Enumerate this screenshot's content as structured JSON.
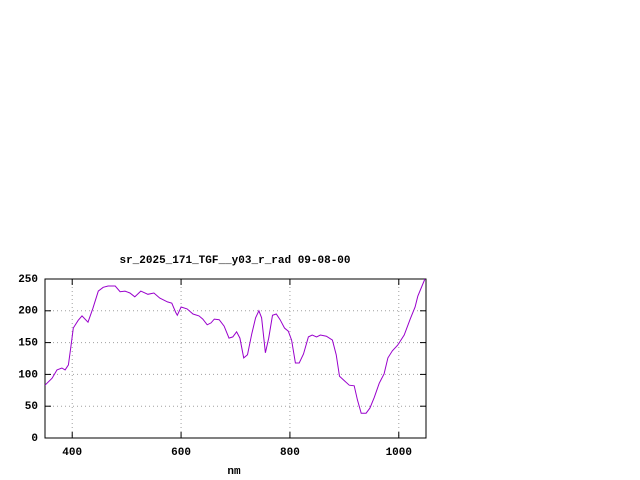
{
  "chart_data": {
    "type": "line",
    "title": "sr_2025_171_TGF__y03_r_rad 09-08-00",
    "x_label": "nm",
    "x": [
      350,
      363,
      372,
      381,
      387,
      393,
      398,
      402,
      411,
      418,
      429,
      438,
      448,
      457,
      466,
      479,
      488,
      497,
      506,
      515,
      526,
      539,
      550,
      561,
      575,
      583,
      590,
      593,
      600,
      611,
      622,
      633,
      640,
      648,
      655,
      661,
      670,
      679,
      688,
      695,
      702,
      708,
      715,
      722,
      730,
      737,
      743,
      748,
      755,
      761,
      768,
      775,
      782,
      790,
      797,
      803,
      810,
      817,
      825,
      834,
      841,
      849,
      856,
      867,
      878,
      885,
      891,
      900,
      909,
      918,
      924,
      931,
      940,
      947,
      955,
      964,
      973,
      980,
      988,
      998,
      1010,
      1021,
      1030,
      1035,
      1048
    ],
    "series": [
      {
        "name": "sr_2025_171_TGF__y03_r_rad",
        "color": "#9900cc",
        "values": [
          83,
          94,
          107,
          110,
          107,
          115,
          146,
          173,
          185,
          192,
          182,
          204,
          231,
          237,
          239,
          239,
          230,
          231,
          228,
          222,
          231,
          226,
          228,
          220,
          214,
          212,
          198,
          193,
          206,
          203,
          195,
          192,
          187,
          178,
          181,
          187,
          186,
          176,
          157,
          159,
          167,
          157,
          126,
          131,
          164,
          189,
          200,
          189,
          134,
          157,
          193,
          195,
          186,
          173,
          168,
          154,
          118,
          118,
          132,
          159,
          162,
          159,
          162,
          160,
          154,
          131,
          97,
          90,
          83,
          82,
          60,
          39,
          39,
          47,
          64,
          86,
          101,
          126,
          137,
          146,
          162,
          187,
          206,
          223,
          250
        ]
      }
    ],
    "xlim": [
      350,
      1050
    ],
    "ylim": [
      0,
      250
    ],
    "xticks": [
      400,
      600,
      800,
      1000
    ],
    "yticks": [
      0,
      50,
      100,
      150,
      200,
      250
    ],
    "grid": true
  }
}
